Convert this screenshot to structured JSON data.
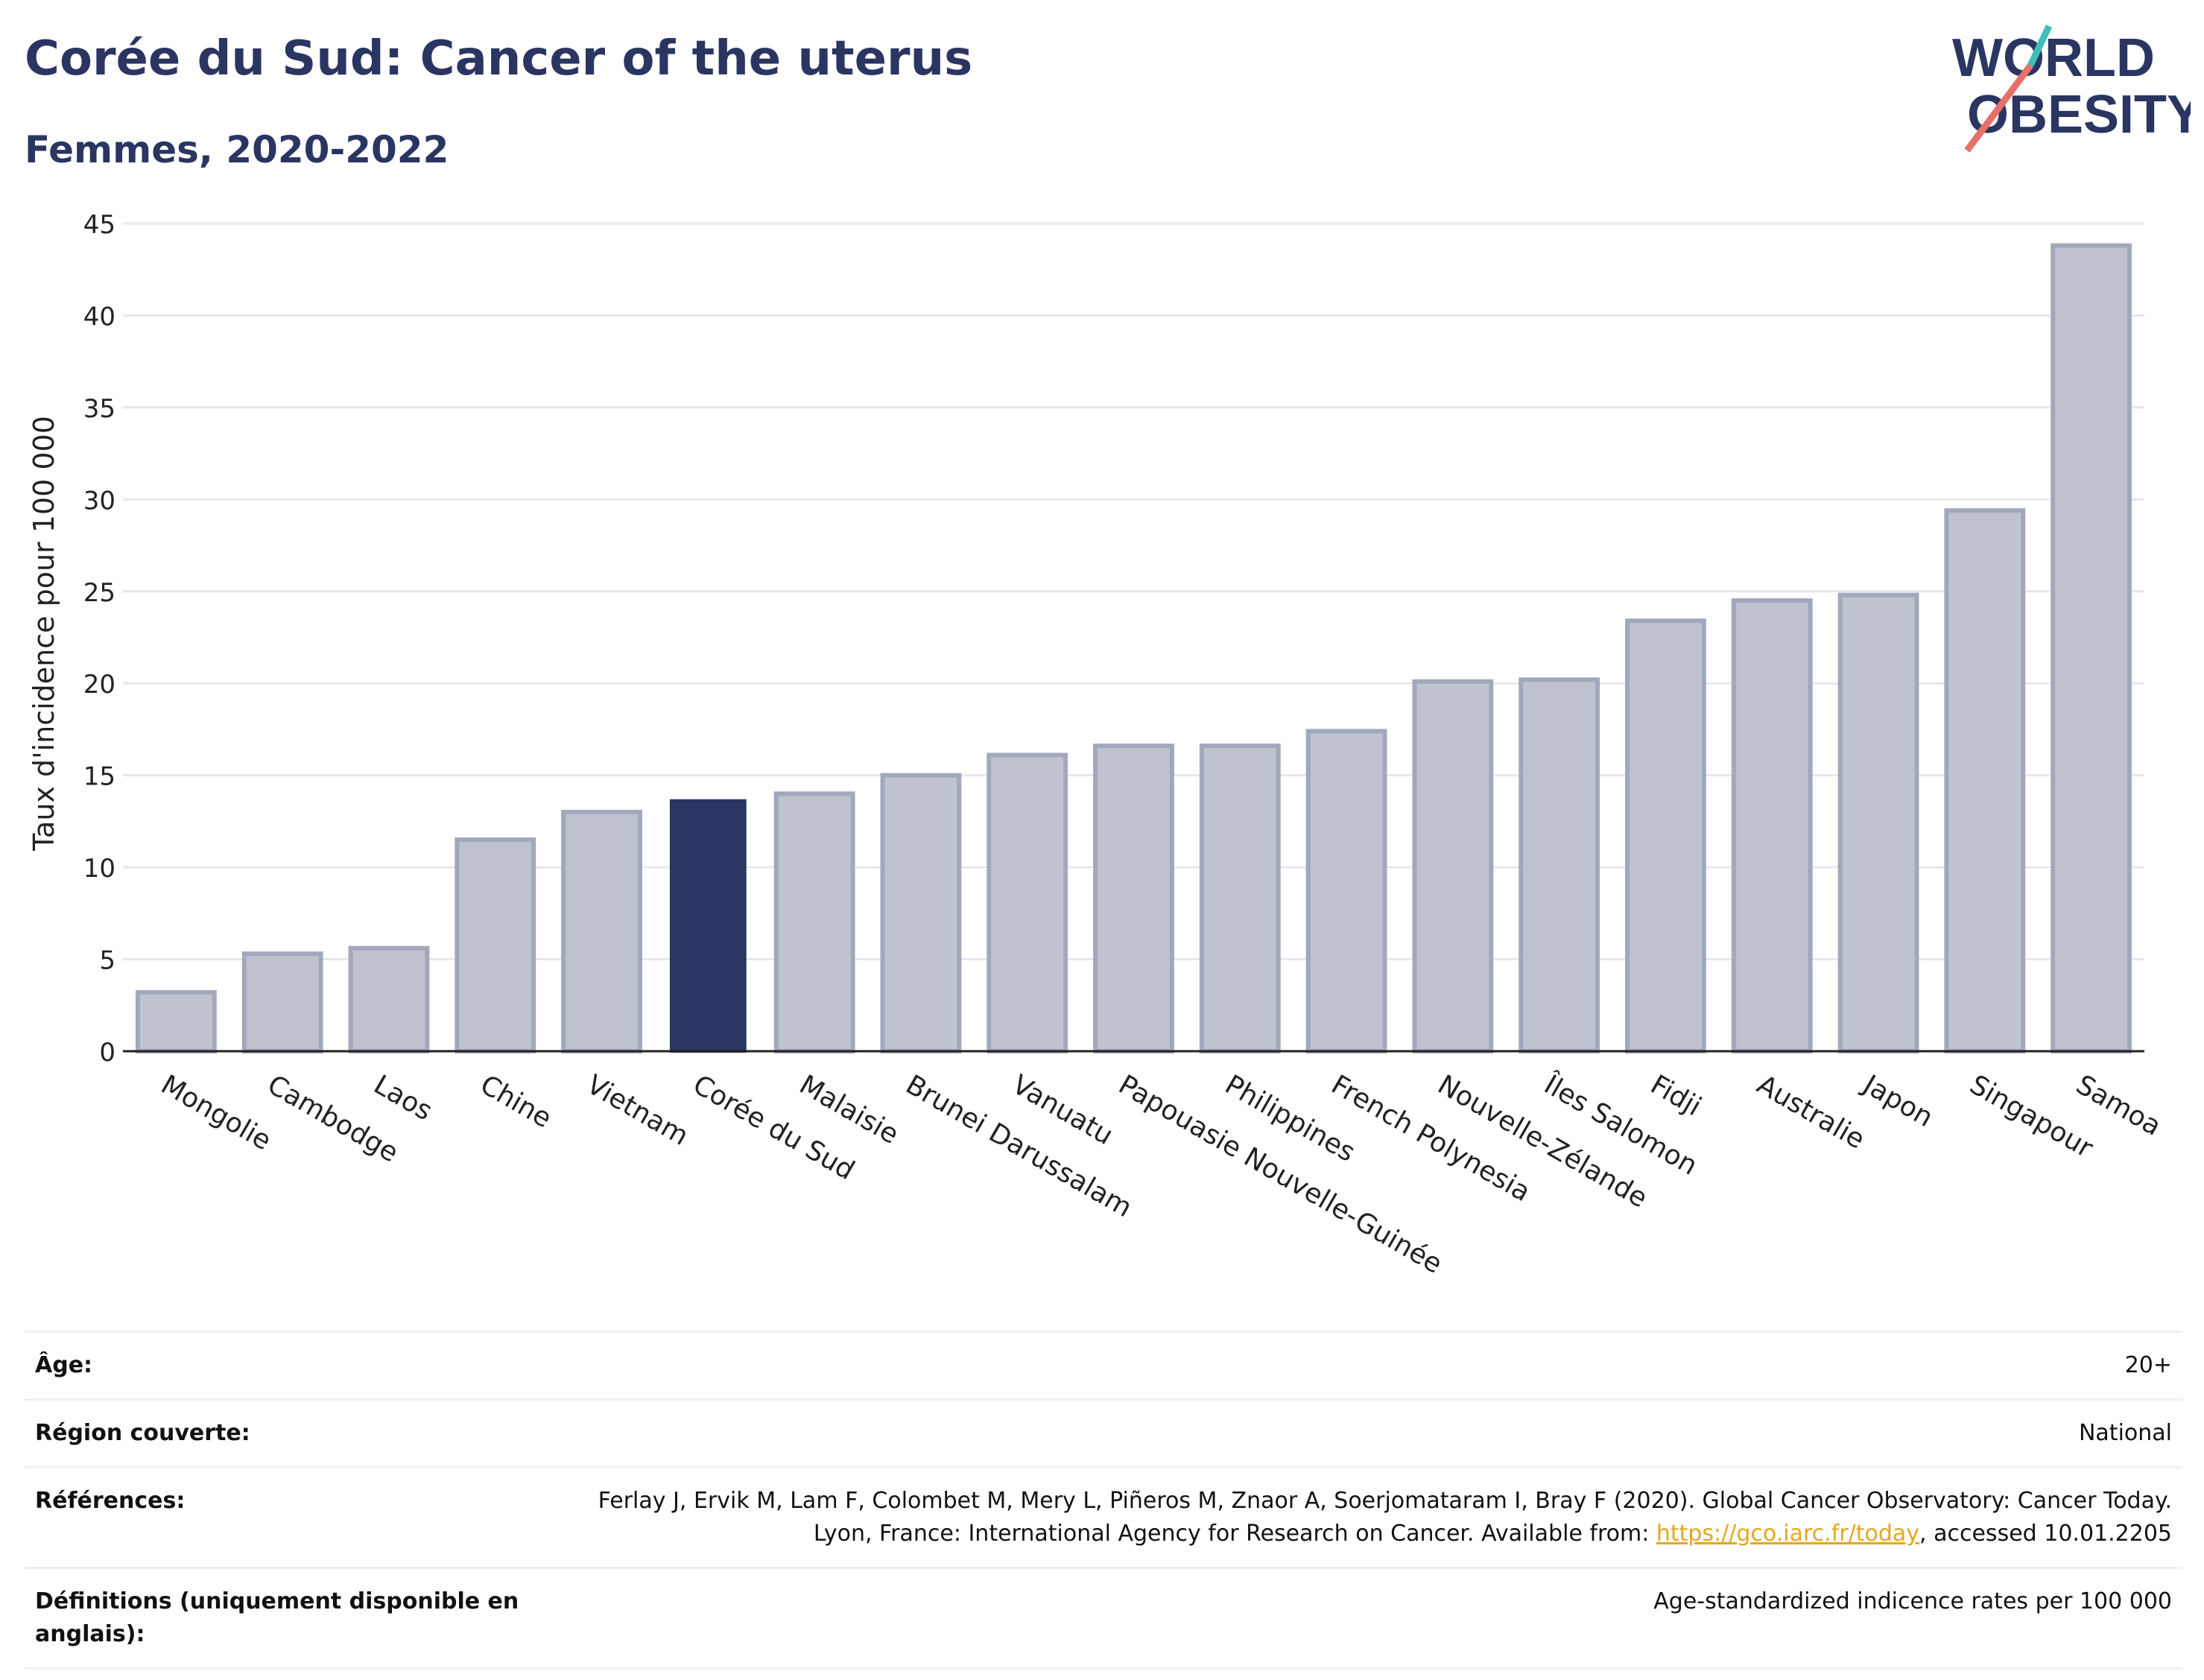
{
  "header": {
    "title": "Corée du Sud: Cancer of the uterus",
    "subtitle": "Femmes, 2020-2022"
  },
  "logo": {
    "line1": "WORLD",
    "line2": "OBESITY",
    "colors": {
      "text": "#2b3561",
      "slash_red": "#e8706a",
      "slash_teal": "#3ebfb8"
    }
  },
  "chart_data": {
    "type": "bar",
    "ylabel": "Taux d'incidence pour 100 000",
    "xlabel": "",
    "ylim": [
      0,
      45
    ],
    "yticks": [
      0,
      5,
      10,
      15,
      20,
      25,
      30,
      35,
      40,
      45
    ],
    "grid": true,
    "highlight": "Corée du Sud",
    "colors": {
      "bar": "#bfc3d0",
      "bar_stroke": "#a2a8bc",
      "highlight": "#2b3561",
      "grid": "#e6e8ee",
      "axis": "#222222"
    },
    "categories": [
      "Mongolie",
      "Cambodge",
      "Laos",
      "Chine",
      "Vietnam",
      "Corée du Sud",
      "Malaisie",
      "Brunei Darussalam",
      "Vanuatu",
      "Papouasie Nouvelle-Guinée",
      "Philippines",
      "French Polynesia",
      "Nouvelle-Zélande",
      "Îles Salomon",
      "Fidji",
      "Australie",
      "Japon",
      "Singapour",
      "Samoa"
    ],
    "values": [
      3.2,
      5.3,
      5.6,
      11.5,
      13.0,
      13.7,
      14.0,
      15.0,
      16.1,
      16.6,
      16.6,
      17.4,
      20.1,
      20.2,
      23.4,
      24.5,
      24.8,
      29.4,
      43.8
    ]
  },
  "meta": {
    "age_label": "Âge:",
    "age_value": "20+",
    "region_label": "Région couverte:",
    "region_value": "National",
    "references_label": "Références:",
    "references_text_1": "Ferlay J, Ervik M, Lam F, Colombet M, Mery L, Piñeros M, Znaor A, Soerjomataram I, Bray F (2020). Global Cancer Observatory: Cancer Today. Lyon, France: International Agency for Research on Cancer. Available from: ",
    "references_link": "https://gco.iarc.fr/today",
    "references_text_2": ", accessed 10.01.2205",
    "definitions_label": "Définitions (uniquement disponible en anglais):",
    "definitions_value": "Age-standardized indicence rates per 100 000"
  }
}
